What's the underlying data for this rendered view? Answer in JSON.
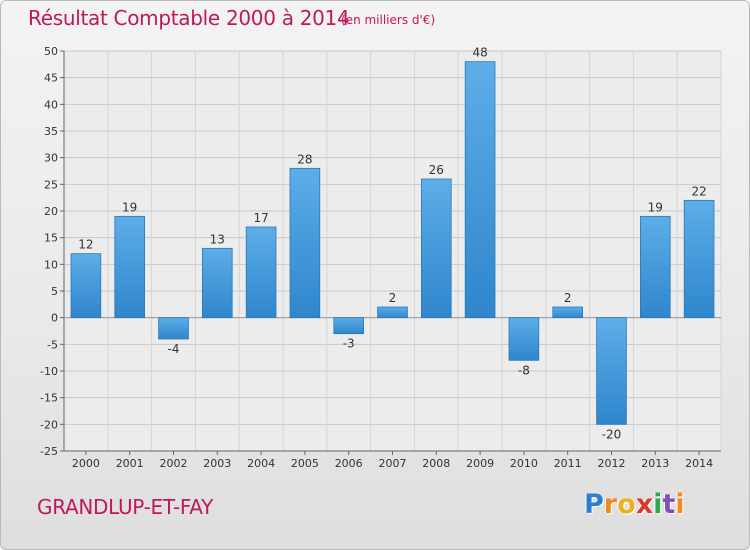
{
  "chart_data": {
    "type": "bar",
    "title": "Résultat Comptable 2000 à 2014",
    "subtitle": "(en milliers d'€)",
    "categories": [
      "2000",
      "2001",
      "2002",
      "2003",
      "2004",
      "2005",
      "2006",
      "2007",
      "2008",
      "2009",
      "2010",
      "2011",
      "2012",
      "2013",
      "2014"
    ],
    "values": [
      12,
      19,
      -4,
      13,
      17,
      28,
      -3,
      2,
      26,
      48,
      -8,
      2,
      -20,
      19,
      22
    ],
    "value_labels": [
      "12",
      "19",
      "-4",
      "13",
      "17",
      "28",
      "-3",
      "2",
      "26",
      "48",
      "-8",
      "2",
      "-20",
      "19",
      "22"
    ],
    "ylim": [
      -25,
      50
    ],
    "yticks": [
      -25,
      -20,
      -15,
      -10,
      -5,
      0,
      5,
      10,
      15,
      20,
      25,
      30,
      35,
      40,
      45,
      50
    ],
    "ytick_labels": [
      "-25",
      "-20",
      "-15",
      "-10",
      "-5",
      "0",
      "5",
      "10",
      "15",
      "20",
      "25",
      "30",
      "35",
      "40",
      "45",
      "50"
    ],
    "xlabel": "",
    "ylabel": "",
    "grid": true,
    "bar_color": "#2f86cc",
    "bar_color_light": "#5daee8"
  },
  "footer": {
    "commune": "GRANDLUP-ET-FAY"
  },
  "logo": {
    "letters": [
      "P",
      "r",
      "o",
      "x",
      "i",
      "t",
      "i"
    ],
    "colors": [
      "#2a7fd0",
      "#f08a1c",
      "#e8b21a",
      "#d63a30",
      "#2aa84a",
      "#7b4fc0",
      "#f08a1c"
    ]
  }
}
